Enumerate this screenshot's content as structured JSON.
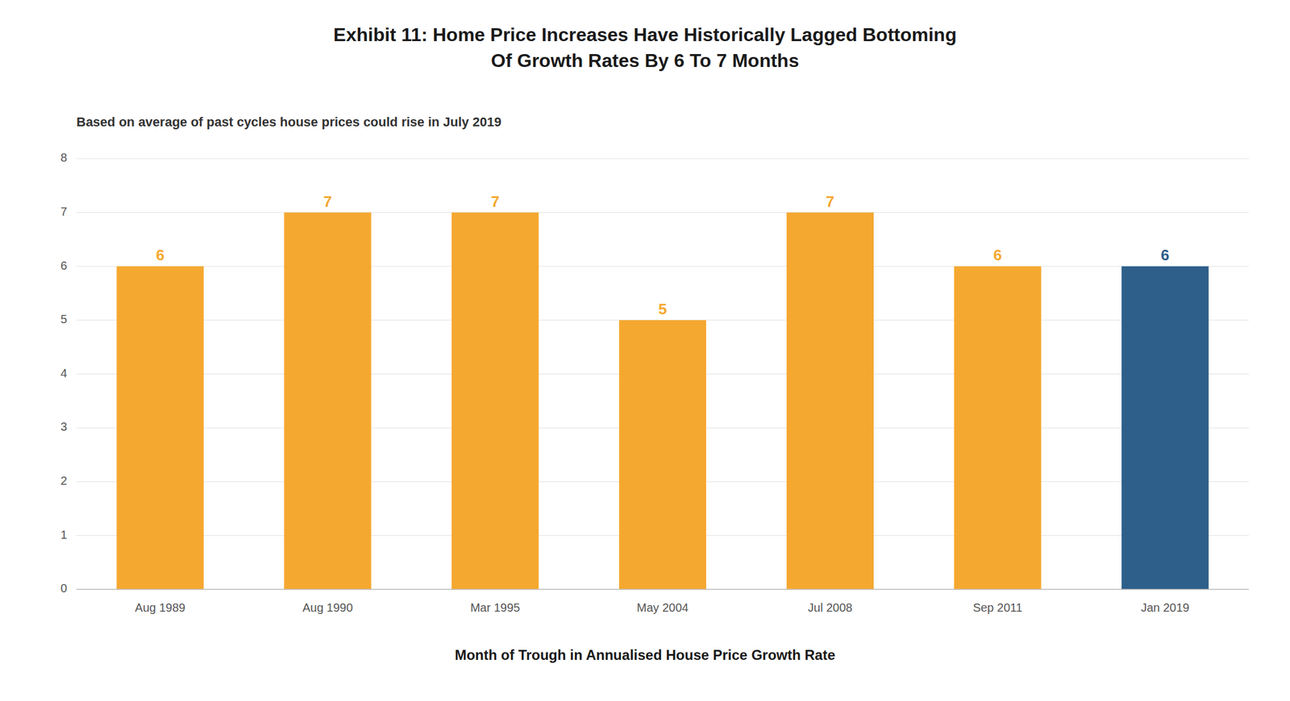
{
  "chart_data": {
    "type": "bar",
    "title": "Exhibit 11: Home Price Increases Have Historically Lagged Bottoming\nOf Growth Rates By 6 To 7 Months",
    "subtitle": "Based on average of past cycles house prices could rise in July 2019",
    "xlabel": "Month of Trough in Annualised House Price Growth Rate",
    "categories": [
      "Aug 1989",
      "Aug 1990",
      "Mar 1995",
      "May 2004",
      "Jul 2008",
      "Sep 2011",
      "Jan 2019"
    ],
    "values": [
      6,
      7,
      7,
      5,
      7,
      6,
      6
    ],
    "colors": [
      "#F5A830",
      "#F5A830",
      "#F5A830",
      "#F5A830",
      "#F5A830",
      "#F5A830",
      "#2D5F8A"
    ],
    "ylim": [
      0,
      8
    ],
    "yticks": [
      0,
      1,
      2,
      3,
      4,
      5,
      6,
      7,
      8
    ],
    "grid": true,
    "data_labels": true
  }
}
